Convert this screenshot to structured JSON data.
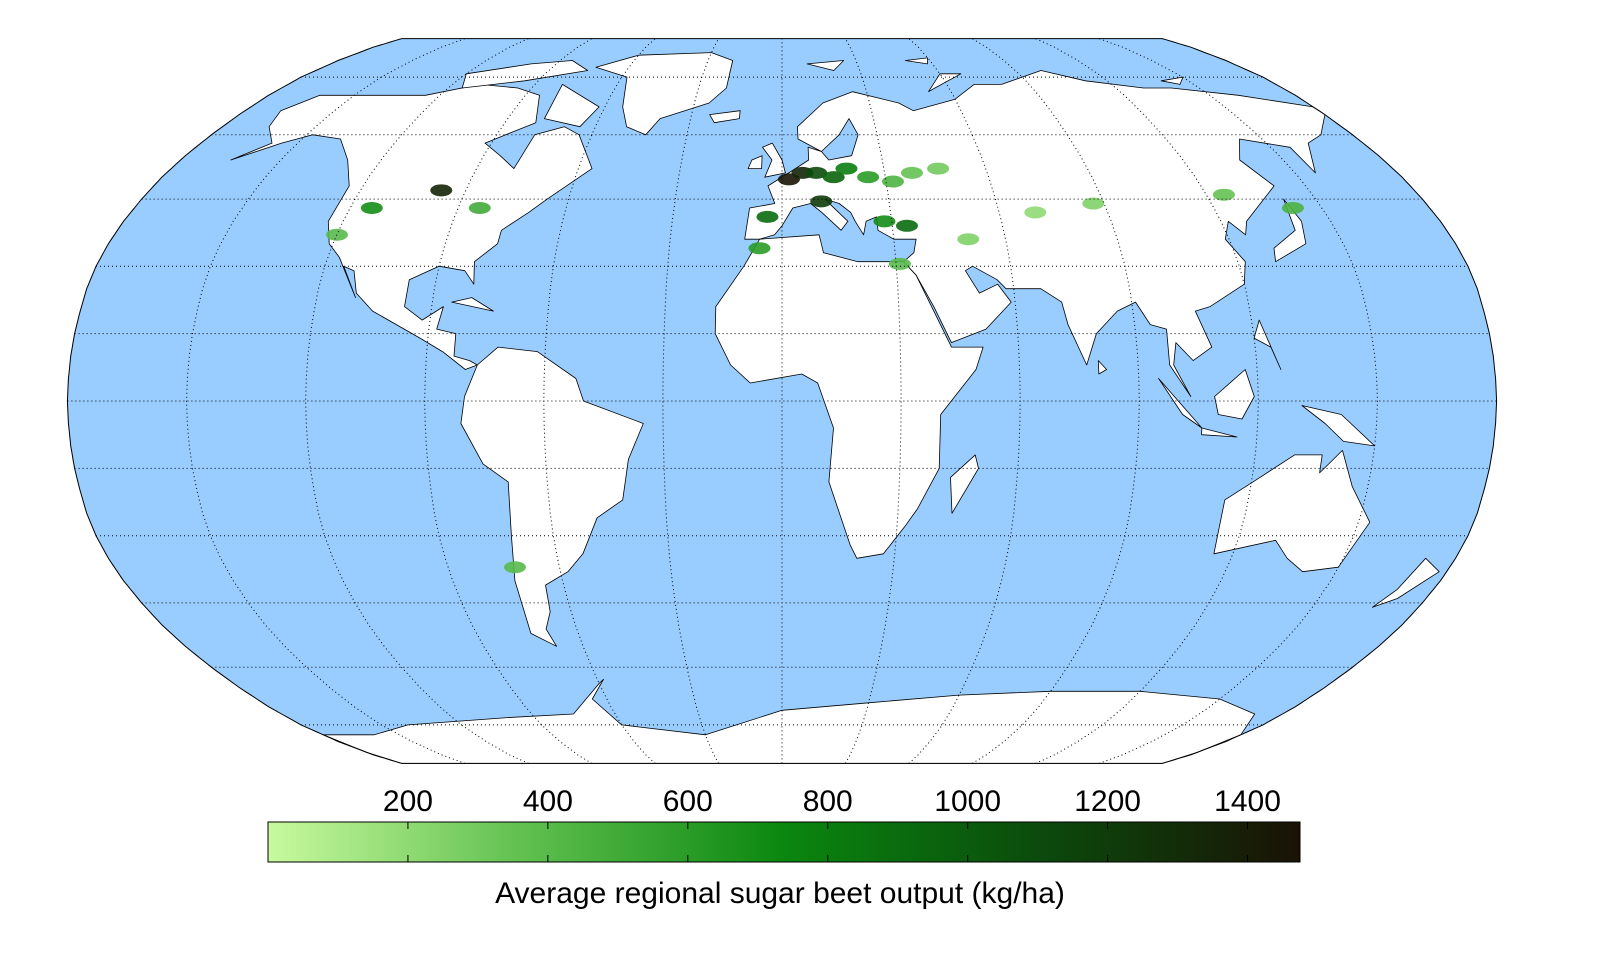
{
  "map": {
    "projection": "robinson",
    "ocean_color": "#99ccff",
    "land_color": "#ffffff",
    "graticule": {
      "lon_step": 30,
      "lat_step": 15
    },
    "hotspots": [
      {
        "lon": 2,
        "lat": 49.5,
        "value": 1450
      },
      {
        "lon": 6,
        "lat": 51,
        "value": 1350
      },
      {
        "lon": 10,
        "lat": 51,
        "value": 1100
      },
      {
        "lon": 15,
        "lat": 50,
        "value": 950
      },
      {
        "lon": 19,
        "lat": 52,
        "value": 800
      },
      {
        "lon": 25,
        "lat": 50,
        "value": 600
      },
      {
        "lon": 32,
        "lat": 49,
        "value": 450
      },
      {
        "lon": 38,
        "lat": 51,
        "value": 350
      },
      {
        "lon": 46,
        "lat": 52,
        "value": 300
      },
      {
        "lon": 34,
        "lat": 39,
        "value": 900
      },
      {
        "lon": 28,
        "lat": 40,
        "value": 700
      },
      {
        "lon": 11,
        "lat": 44.5,
        "value": 1200
      },
      {
        "lon": -4,
        "lat": 41,
        "value": 900
      },
      {
        "lon": -6,
        "lat": 34,
        "value": 600
      },
      {
        "lon": 50,
        "lat": 36,
        "value": 250
      },
      {
        "lon": 70,
        "lat": 42,
        "value": 200
      },
      {
        "lon": 87,
        "lat": 44,
        "value": 250
      },
      {
        "lon": 125,
        "lat": 46,
        "value": 350
      },
      {
        "lon": 142,
        "lat": 43,
        "value": 450
      },
      {
        "lon": -97,
        "lat": 47,
        "value": 1350
      },
      {
        "lon": -114,
        "lat": 43,
        "value": 700
      },
      {
        "lon": -120,
        "lat": 37,
        "value": 400
      },
      {
        "lon": -84,
        "lat": 43,
        "value": 500
      },
      {
        "lon": -72,
        "lat": -37,
        "value": 400
      },
      {
        "lon": 31,
        "lat": 30.5,
        "value": 400
      }
    ]
  },
  "colorbar": {
    "label": "Average regional sugar beet output (kg/ha)",
    "range": [
      0,
      1475
    ],
    "ticks": [
      200,
      400,
      600,
      800,
      1000,
      1200,
      1400
    ],
    "colors": [
      "#c8fa9e",
      "#5fbf4f",
      "#0a870f",
      "#0b4a0c",
      "#1a1205"
    ]
  }
}
